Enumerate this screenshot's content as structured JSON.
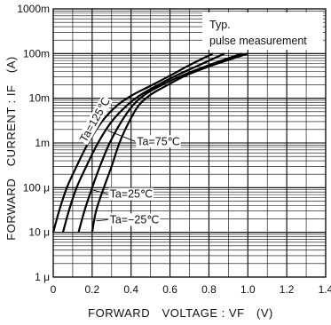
{
  "chart_data": {
    "type": "line",
    "xlabel": "FORWARD　VOLTAGE : VF　(V)",
    "ylabel": "FORWARD　CURRENT : IF　(A)",
    "xlim": [
      0,
      1.4
    ],
    "ylim_log10": [
      -6,
      0
    ],
    "y_scale": "log",
    "grid": true,
    "x_ticks": [
      "0",
      "0.2",
      "0.4",
      "0.6",
      "0.8",
      "1.0",
      "1.2",
      "1.4"
    ],
    "y_ticks": [
      "1 μ",
      "10 μ",
      "100 μ",
      "1m",
      "10m",
      "100m",
      "1000m"
    ],
    "notes": [
      "Typ.",
      "pulse measurement"
    ],
    "series": [
      {
        "label": "Ta=125℃",
        "x": [
          0.0,
          0.03,
          0.07,
          0.12,
          0.18,
          0.25,
          0.33,
          0.41,
          0.5,
          0.6,
          0.7,
          0.82
        ],
        "y": [
          1e-05,
          3e-05,
          0.0001,
          0.0003,
          0.001,
          0.003,
          0.007,
          0.012,
          0.019,
          0.032,
          0.055,
          0.1
        ]
      },
      {
        "label": "Ta=75℃",
        "x": [
          0.05,
          0.08,
          0.12,
          0.17,
          0.23,
          0.3,
          0.38,
          0.45,
          0.53,
          0.63,
          0.75,
          0.88
        ],
        "y": [
          1e-05,
          3e-05,
          0.0001,
          0.0003,
          0.001,
          0.003,
          0.007,
          0.012,
          0.019,
          0.032,
          0.055,
          0.1
        ]
      },
      {
        "label": "Ta=25℃",
        "x": [
          0.13,
          0.16,
          0.2,
          0.24,
          0.29,
          0.35,
          0.41,
          0.47,
          0.55,
          0.66,
          0.8,
          0.97
        ],
        "y": [
          1e-05,
          3e-05,
          0.0001,
          0.0003,
          0.001,
          0.003,
          0.007,
          0.012,
          0.019,
          0.032,
          0.055,
          0.1
        ]
      },
      {
        "label": "Ta=−25℃",
        "x": [
          0.2,
          0.22,
          0.26,
          0.3,
          0.34,
          0.39,
          0.44,
          0.5,
          0.58,
          0.68,
          0.82,
          1.0
        ],
        "y": [
          1e-05,
          3e-05,
          0.0001,
          0.0003,
          0.001,
          0.003,
          0.007,
          0.012,
          0.019,
          0.032,
          0.055,
          0.1
        ]
      }
    ],
    "annotations": [
      {
        "series": 0,
        "text": "Ta=125℃",
        "x": 0.23,
        "y": 0.003,
        "angle": -60,
        "anchor": "middle"
      },
      {
        "series": 1,
        "text": "Ta=75℃",
        "x": 0.43,
        "y": 0.0009,
        "anchor": "start",
        "leader_to": [
          0.28,
          0.0019
        ]
      },
      {
        "series": 2,
        "text": "Ta=25℃",
        "x": 0.29,
        "y": 6e-05,
        "anchor": "start",
        "leader_to": [
          0.2,
          9e-05
        ]
      },
      {
        "series": 3,
        "text": "Ta=−25℃",
        "x": 0.29,
        "y": 1.6e-05,
        "anchor": "start",
        "leader_to": [
          0.22,
          1.8e-05
        ]
      }
    ],
    "colors": {
      "line": "#000000",
      "grid": "#000000",
      "background": "#ffffff"
    }
  }
}
